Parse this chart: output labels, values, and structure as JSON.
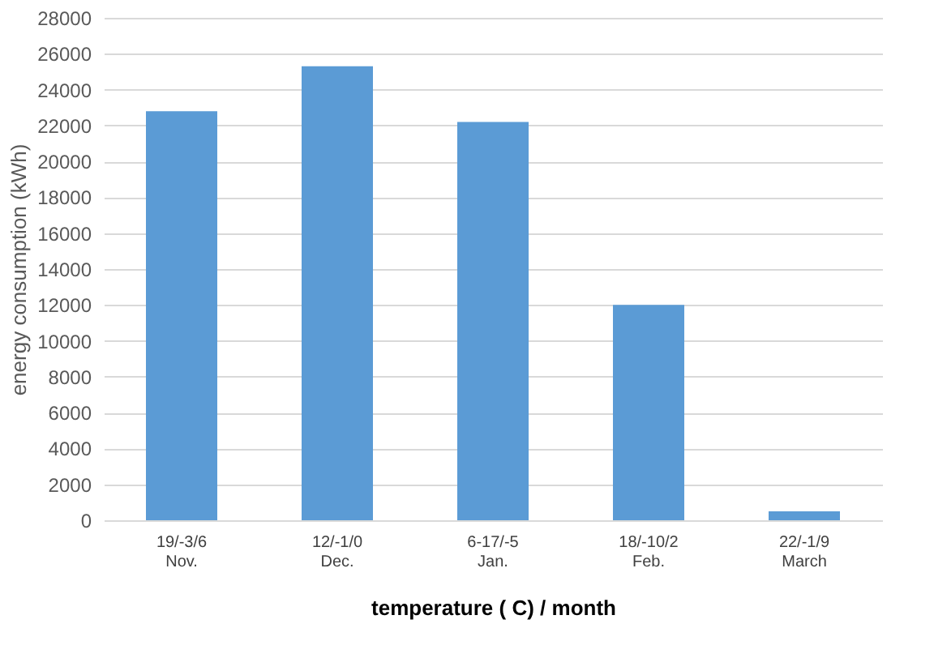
{
  "chart_data": {
    "type": "bar",
    "xlabel": "temperature ( C) / month",
    "ylabel": "energy consumption (kWh)",
    "categories": [
      "19/-3/6\nNov.",
      "12/-1/0\nDec.",
      "6-17/-5\nJan.",
      "18/-10/2\nFeb.",
      "22/-1/9\nMarch"
    ],
    "values": [
      22800,
      25300,
      22200,
      12000,
      500
    ],
    "color": "#5b9bd5",
    "ylim": [
      0,
      28000
    ],
    "yticks": [
      0,
      2000,
      4000,
      6000,
      8000,
      10000,
      12000,
      14000,
      16000,
      18000,
      20000,
      22000,
      24000,
      26000,
      28000
    ],
    "grid": "y"
  }
}
